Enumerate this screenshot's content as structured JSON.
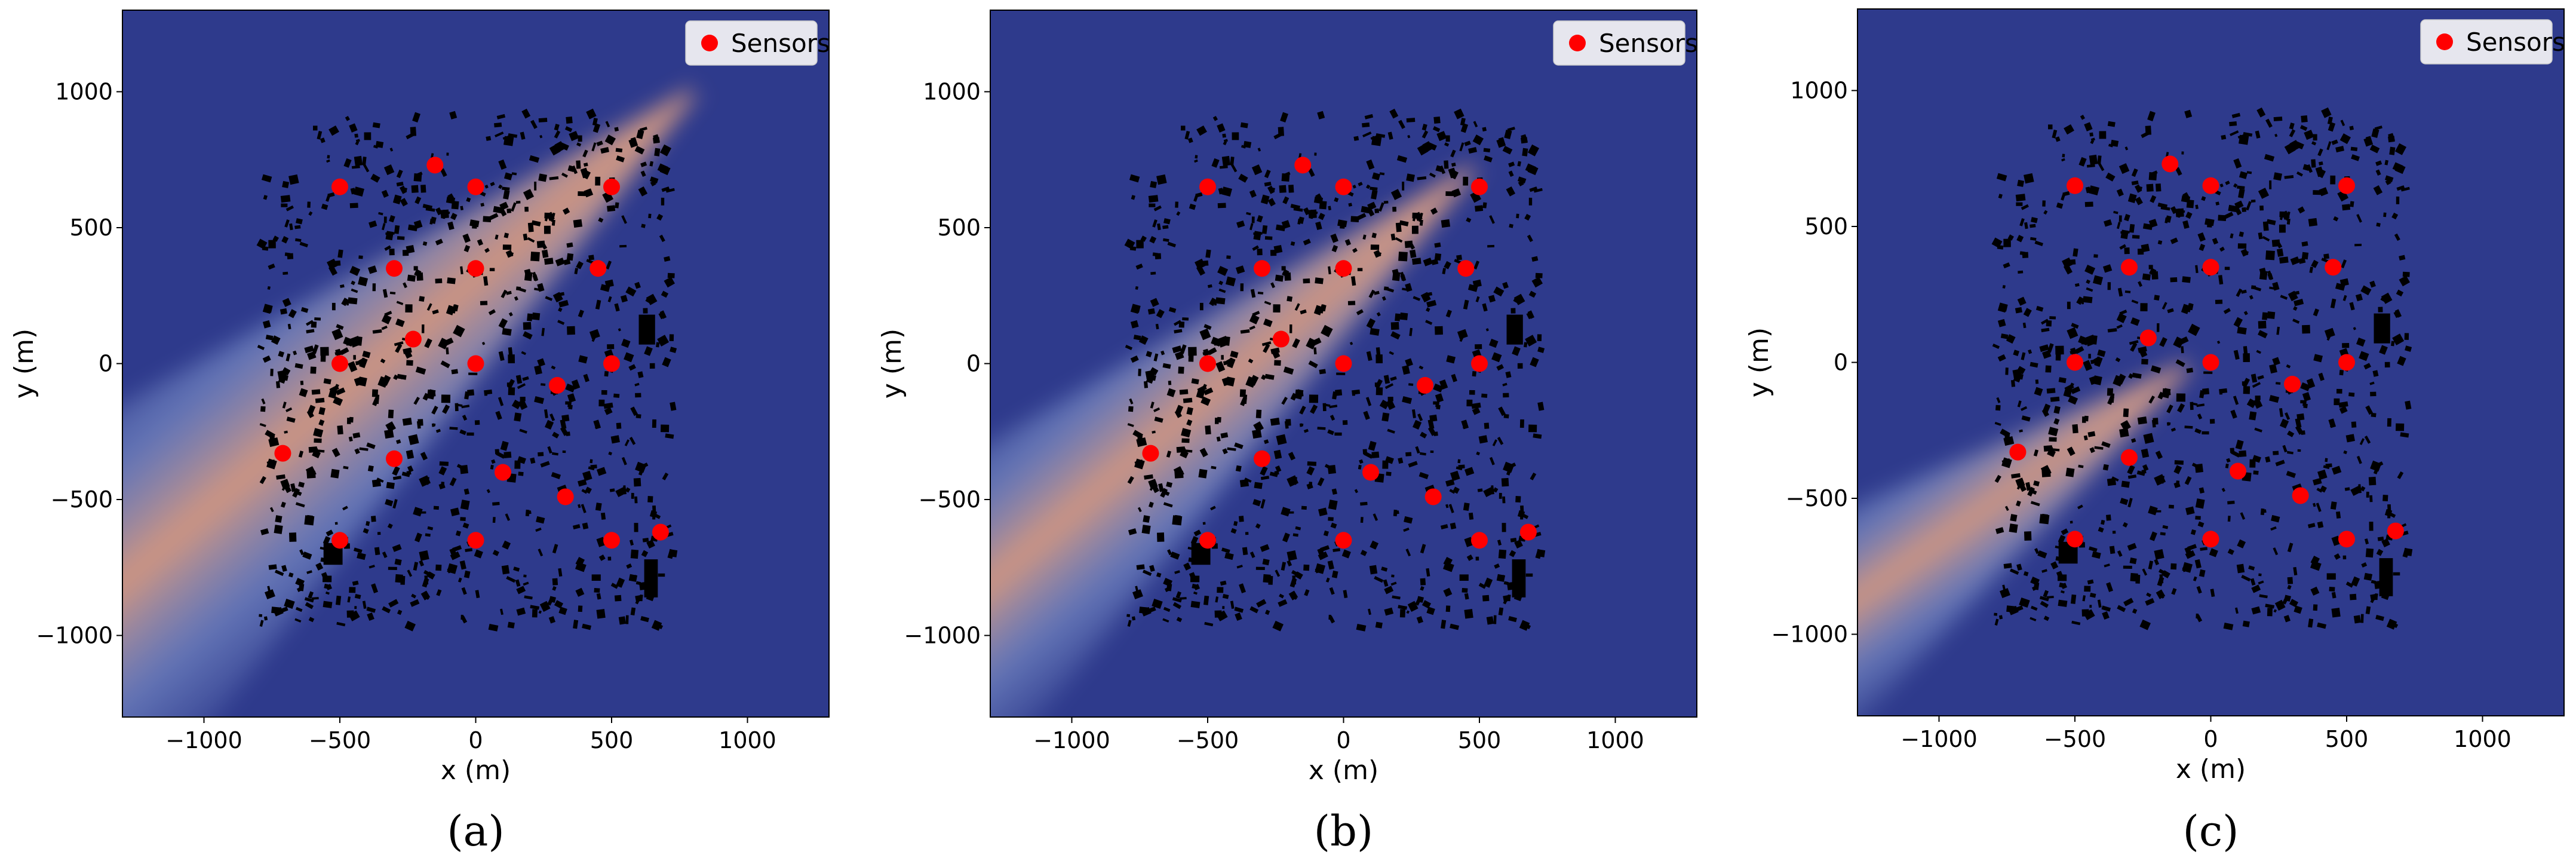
{
  "figure": {
    "panel_labels": [
      "(a)",
      "(b)",
      "(c)"
    ]
  },
  "colors": {
    "background": "#2e3a8c",
    "plume_core": "#d99a7e",
    "plume_edge": "#8aa0d6",
    "buildings": "#000000",
    "sensor": "#ff0000",
    "legend_bg": "#e6e6ee"
  },
  "chart_data": [
    {
      "type": "scatter",
      "panel": "(a)",
      "title": "",
      "xlabel": "x (m)",
      "ylabel": "y (m)",
      "xlim": [
        -1300,
        1300
      ],
      "ylim": [
        -1300,
        1300
      ],
      "xticks": [
        -1000,
        -500,
        0,
        500,
        1000
      ],
      "yticks": [
        -1000,
        -500,
        0,
        500,
        1000
      ],
      "xtick_labels": [
        "−1000",
        "−500",
        "0",
        "500",
        "1000"
      ],
      "ytick_labels": [
        "−1000",
        "−500",
        "0",
        "500",
        "1000"
      ],
      "legend": {
        "entries": [
          "Sensors"
        ],
        "position": "upper-right"
      },
      "background": "dispersion concentration field with city building footprints",
      "plume": {
        "source": [
          800,
          1000
        ],
        "direction": "toward lower-left",
        "spread": "wide"
      },
      "series": [
        {
          "name": "Sensors",
          "points": [
            [
              -500,
              650
            ],
            [
              -150,
              730
            ],
            [
              0,
              650
            ],
            [
              500,
              650
            ],
            [
              -300,
              350
            ],
            [
              0,
              350
            ],
            [
              450,
              350
            ],
            [
              -230,
              90
            ],
            [
              -500,
              0
            ],
            [
              0,
              0
            ],
            [
              500,
              0
            ],
            [
              300,
              -80
            ],
            [
              -710,
              -330
            ],
            [
              -300,
              -350
            ],
            [
              100,
              -400
            ],
            [
              330,
              -490
            ],
            [
              -500,
              -650
            ],
            [
              0,
              -650
            ],
            [
              500,
              -650
            ],
            [
              680,
              -620
            ]
          ]
        }
      ]
    },
    {
      "type": "scatter",
      "panel": "(b)",
      "title": "",
      "xlabel": "x (m)",
      "ylabel": "y (m)",
      "xlim": [
        -1300,
        1300
      ],
      "ylim": [
        -1300,
        1300
      ],
      "xticks": [
        -1000,
        -500,
        0,
        500,
        1000
      ],
      "yticks": [
        -1000,
        -500,
        0,
        500,
        1000
      ],
      "xtick_labels": [
        "−1000",
        "−500",
        "0",
        "500",
        "1000"
      ],
      "ytick_labels": [
        "−1000",
        "−500",
        "0",
        "500",
        "1000"
      ],
      "legend": {
        "entries": [
          "Sensors"
        ],
        "position": "upper-right"
      },
      "background": "dispersion concentration field with city building footprints",
      "plume": {
        "source": [
          480,
          720
        ],
        "direction": "toward lower-left",
        "spread": "medium"
      },
      "series": [
        {
          "name": "Sensors",
          "points": [
            [
              -500,
              650
            ],
            [
              -150,
              730
            ],
            [
              0,
              650
            ],
            [
              500,
              650
            ],
            [
              -300,
              350
            ],
            [
              0,
              350
            ],
            [
              450,
              350
            ],
            [
              -230,
              90
            ],
            [
              -500,
              0
            ],
            [
              0,
              0
            ],
            [
              500,
              0
            ],
            [
              300,
              -80
            ],
            [
              -710,
              -330
            ],
            [
              -300,
              -350
            ],
            [
              100,
              -400
            ],
            [
              330,
              -490
            ],
            [
              -500,
              -650
            ],
            [
              0,
              -650
            ],
            [
              500,
              -650
            ],
            [
              680,
              -620
            ]
          ]
        }
      ]
    },
    {
      "type": "scatter",
      "panel": "(c)",
      "title": "",
      "xlabel": "x (m)",
      "ylabel": "y (m)",
      "xlim": [
        -1300,
        1300
      ],
      "ylim": [
        -1300,
        1300
      ],
      "xticks": [
        -1000,
        -500,
        0,
        500,
        1000
      ],
      "yticks": [
        -1000,
        -500,
        0,
        500,
        1000
      ],
      "xtick_labels": [
        "−1000",
        "−500",
        "0",
        "500",
        "1000"
      ],
      "ytick_labels": [
        "−1000",
        "−500",
        "0",
        "500",
        "1000"
      ],
      "legend": {
        "entries": [
          "Sensors"
        ],
        "position": "upper-right"
      },
      "background": "dispersion concentration field with city building footprints",
      "plume": {
        "source": [
          -80,
          -10
        ],
        "direction": "toward lower-left",
        "spread": "narrow"
      },
      "series": [
        {
          "name": "Sensors",
          "points": [
            [
              -500,
              650
            ],
            [
              -150,
              730
            ],
            [
              0,
              650
            ],
            [
              500,
              650
            ],
            [
              -300,
              350
            ],
            [
              0,
              350
            ],
            [
              450,
              350
            ],
            [
              -230,
              90
            ],
            [
              -500,
              0
            ],
            [
              0,
              0
            ],
            [
              500,
              0
            ],
            [
              300,
              -80
            ],
            [
              -710,
              -330
            ],
            [
              -300,
              -350
            ],
            [
              100,
              -400
            ],
            [
              330,
              -490
            ],
            [
              -500,
              -650
            ],
            [
              0,
              -650
            ],
            [
              500,
              -650
            ],
            [
              680,
              -620
            ]
          ]
        }
      ]
    }
  ]
}
